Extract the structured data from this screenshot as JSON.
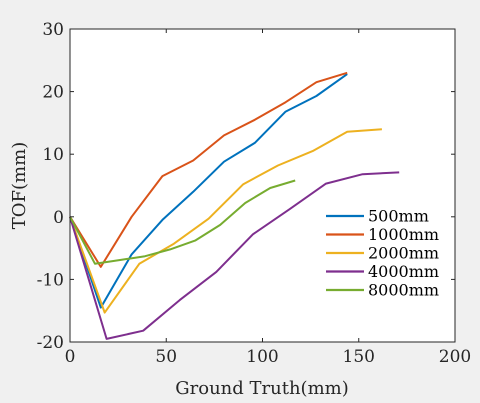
{
  "chart_data": {
    "type": "line",
    "xlabel": "Ground Truth(mm)",
    "ylabel": "TOF(mm)",
    "xlim": [
      0,
      200
    ],
    "ylim": [
      -20,
      30
    ],
    "xticks": [
      0,
      50,
      100,
      150,
      200
    ],
    "yticks": [
      -20,
      -10,
      0,
      10,
      20,
      30
    ],
    "grid": false,
    "legend_position": "bottom-right",
    "series": [
      {
        "name": "500mm",
        "color": "#0072BD",
        "x": [
          0,
          16,
          32,
          48,
          64,
          80,
          96,
          112,
          128,
          144
        ],
        "y": [
          0,
          -14.5,
          -6,
          -0.5,
          4,
          8.8,
          11.8,
          16.8,
          19.3,
          22.8
        ]
      },
      {
        "name": "1000mm",
        "color": "#D95319",
        "x": [
          0,
          16,
          32,
          48,
          64,
          80,
          96,
          112,
          128,
          144
        ],
        "y": [
          0,
          -8,
          0,
          6.5,
          9,
          13,
          15.5,
          18.3,
          21.5,
          23
        ]
      },
      {
        "name": "2000mm",
        "color": "#EDB120",
        "x": [
          0,
          18,
          36,
          54,
          72,
          90,
          108,
          126,
          144,
          162
        ],
        "y": [
          0,
          -15.3,
          -7.5,
          -4.3,
          -0.3,
          5.2,
          8.2,
          10.5,
          13.6,
          14
        ]
      },
      {
        "name": "4000mm",
        "color": "#7E2F8E",
        "x": [
          0,
          19,
          38,
          57,
          76,
          95,
          114,
          133,
          152,
          171
        ],
        "y": [
          0,
          -19.5,
          -18.2,
          -13.3,
          -8.8,
          -2.8,
          1.2,
          5.3,
          6.8,
          7.1
        ]
      },
      {
        "name": "8000mm",
        "color": "#77AC30",
        "x": [
          0,
          13,
          26,
          39,
          52,
          65,
          78,
          91,
          104,
          117
        ],
        "y": [
          0,
          -7.5,
          -6.9,
          -6.3,
          -5.2,
          -3.8,
          -1.3,
          2.2,
          4.6,
          5.8
        ]
      }
    ]
  }
}
